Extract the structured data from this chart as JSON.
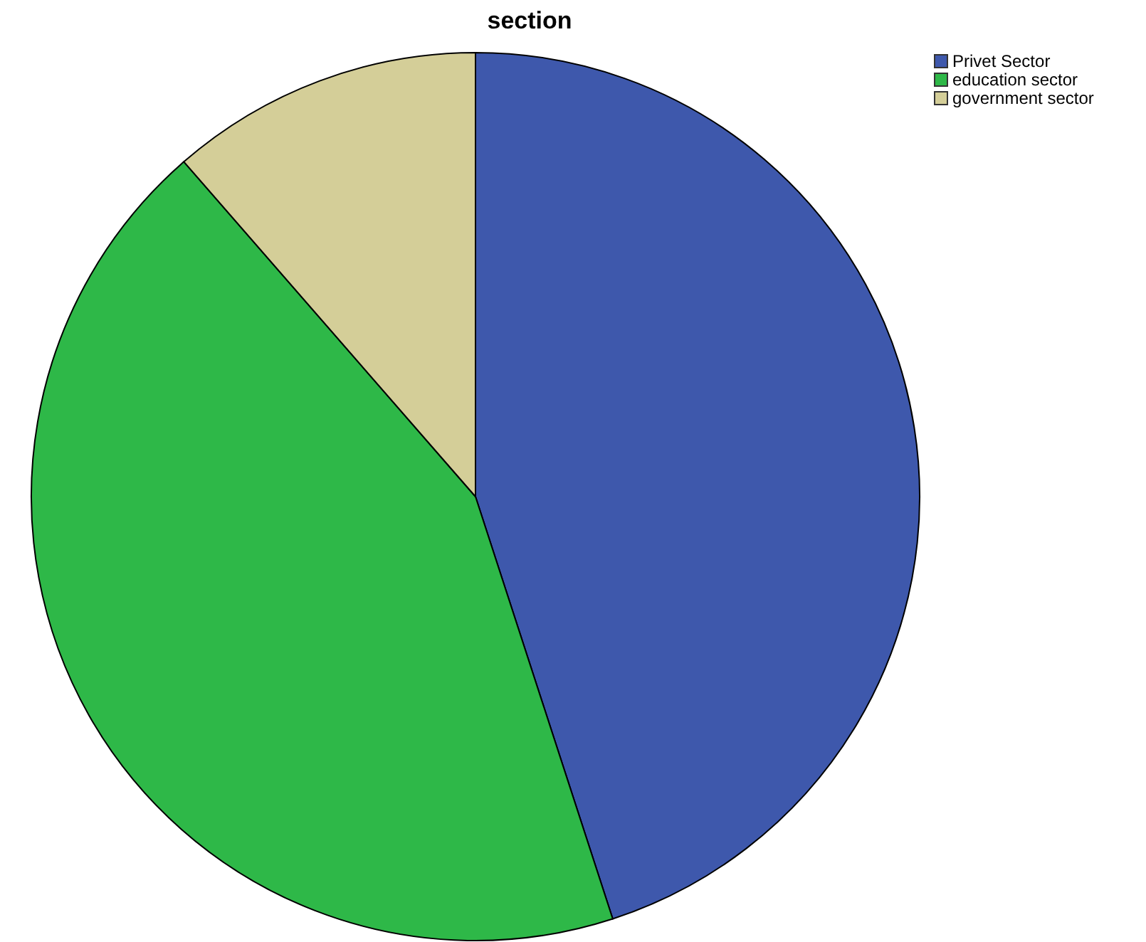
{
  "chart_data": {
    "type": "pie",
    "title": "section",
    "categories": [
      "Privet Sector",
      "education sector",
      "government sector"
    ],
    "values": [
      45.0,
      43.6,
      11.4
    ],
    "colors": [
      "#3e58ac",
      "#2eb848",
      "#d4ce98"
    ],
    "legend": "top right"
  }
}
